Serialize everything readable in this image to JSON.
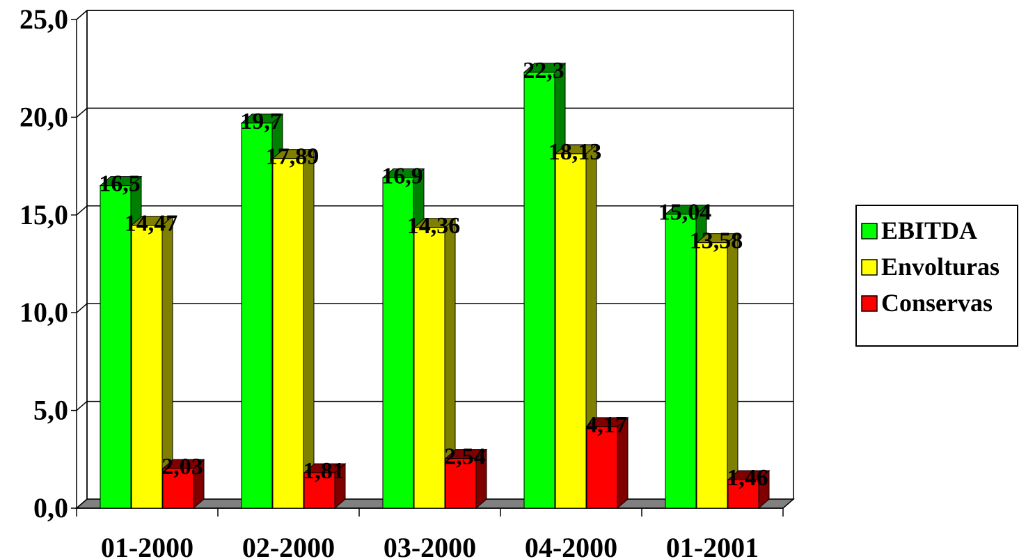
{
  "chart_data": {
    "type": "bar",
    "title": "",
    "xlabel": "",
    "ylabel": "",
    "categories": [
      "01-2000",
      "02-2000",
      "03-2000",
      "04-2000",
      "01-2001"
    ],
    "series": [
      {
        "name": "EBITDA",
        "values": [
          16.5,
          19.7,
          16.9,
          22.3,
          15.04
        ],
        "labels": [
          "16,5",
          "19,7",
          "16,9",
          "22,3",
          "15,04"
        ],
        "color": "#00FF00",
        "side_color": "#008000"
      },
      {
        "name": "Envolturas",
        "values": [
          14.47,
          17.89,
          14.36,
          18.13,
          13.58
        ],
        "labels": [
          "14,47",
          "17,89",
          "14,36",
          "18,13",
          "13,58"
        ],
        "color": "#FFFF00",
        "side_color": "#808000"
      },
      {
        "name": "Conservas",
        "values": [
          2.03,
          1.81,
          2.54,
          4.17,
          1.46
        ],
        "labels": [
          "2,03",
          "1,81",
          "2,54",
          "4,17",
          "1,46"
        ],
        "color": "#FF0000",
        "side_color": "#800000"
      }
    ],
    "ylim": [
      0,
      25
    ],
    "yticks": [
      0,
      5,
      10,
      15,
      20,
      25
    ],
    "ytick_labels": [
      "0,0",
      "5,0",
      "10,0",
      "15,0",
      "20,0",
      "25,0"
    ],
    "grid": true,
    "legend_position": "right",
    "style": "3d-column",
    "floor_color": "#808080"
  }
}
